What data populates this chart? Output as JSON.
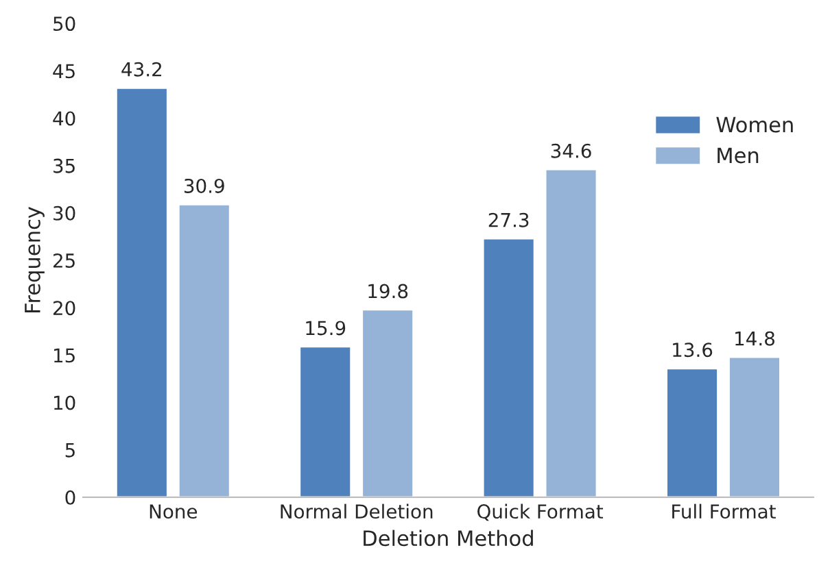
{
  "chart_data": {
    "type": "bar",
    "xlabel": "Deletion Method",
    "ylabel": "Frequency",
    "categories": [
      "None",
      "Normal Deletion",
      "Quick Format",
      "Full Format"
    ],
    "series": [
      {
        "name": "Women",
        "color": "#4f81bd",
        "values": [
          43.2,
          15.9,
          27.3,
          13.6
        ]
      },
      {
        "name": "Men",
        "color": "#95b3d7",
        "values": [
          30.9,
          19.8,
          34.6,
          14.8
        ]
      }
    ],
    "ylim": [
      0,
      50
    ],
    "yticks": [
      0,
      5,
      10,
      15,
      20,
      25,
      30,
      35,
      40,
      45,
      50
    ],
    "grid": false,
    "legend": "right",
    "data_labels": true
  }
}
